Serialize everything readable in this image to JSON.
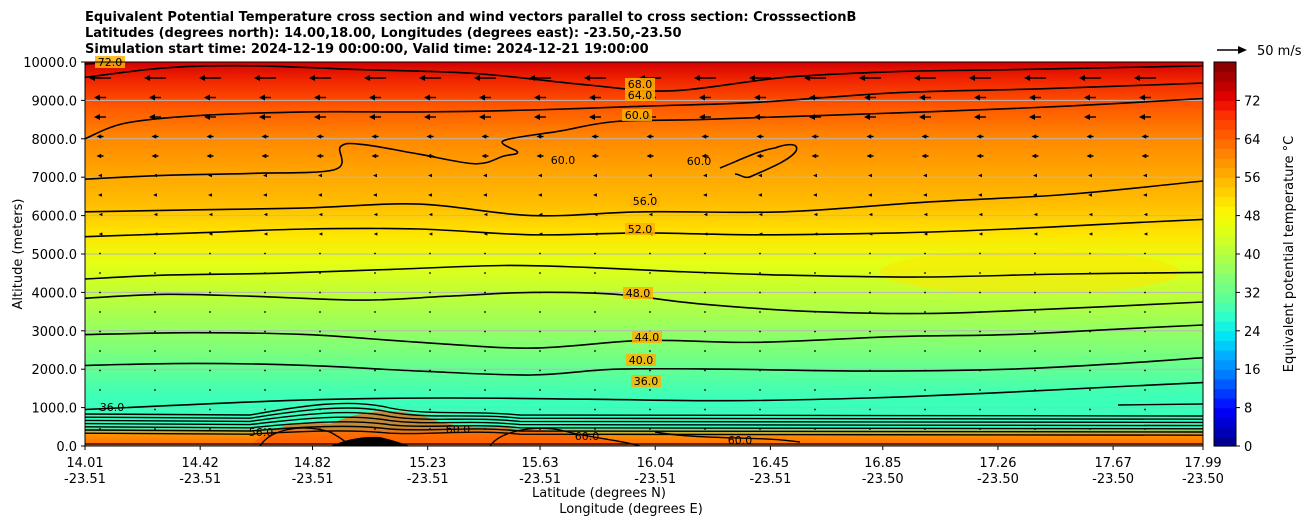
{
  "chart_data": {
    "type": "contour",
    "title_lines": [
      "Equivalent Potential Temperature cross section and wind vectors parallel to cross section: CrosssectionB",
      "Latitudes (degrees north): 14.00,18.00, Longitudes (degrees east): -23.50,-23.50",
      "Simulation start time: 2024-12-19 00:00:00, Valid time: 2024-12-21 19:00:00"
    ],
    "ylabel": "Altitude (meters)",
    "xlabel_lines": [
      "Latitude (degrees N)",
      "Longitude (degrees E)"
    ],
    "ylim": [
      0,
      10000
    ],
    "y_ticks": [
      "0.0",
      "1000.0",
      "2000.0",
      "3000.0",
      "4000.0",
      "5000.0",
      "6000.0",
      "7000.0",
      "8000.0",
      "9000.0",
      "10000.0"
    ],
    "x_ticks": [
      {
        "lat": "14.01",
        "lon": "-23.51"
      },
      {
        "lat": "14.42",
        "lon": "-23.51"
      },
      {
        "lat": "14.82",
        "lon": "-23.51"
      },
      {
        "lat": "15.23",
        "lon": "-23.51"
      },
      {
        "lat": "15.63",
        "lon": "-23.51"
      },
      {
        "lat": "16.04",
        "lon": "-23.51"
      },
      {
        "lat": "16.45",
        "lon": "-23.51"
      },
      {
        "lat": "16.85",
        "lon": "-23.50"
      },
      {
        "lat": "17.26",
        "lon": "-23.50"
      },
      {
        "lat": "17.67",
        "lon": "-23.50"
      },
      {
        "lat": "17.99",
        "lon": "-23.50"
      }
    ],
    "colorbar": {
      "label": "Equivalent potential temperature $^\\circ$C",
      "label_text": "Equivalent potential temperature °C",
      "range": [
        0,
        80
      ],
      "ticks": [
        "0",
        "8",
        "16",
        "24",
        "32",
        "40",
        "48",
        "56",
        "64",
        "72"
      ]
    },
    "quiver_key": "50 m/s",
    "contours": [
      {
        "level": 36,
        "label": "36.0",
        "points": [
          [
            14.01,
            950
          ],
          [
            14.3,
            1050
          ],
          [
            14.8,
            1200
          ],
          [
            15.3,
            1250
          ],
          [
            15.8,
            1220
          ],
          [
            16.3,
            1180
          ],
          [
            16.8,
            1250
          ],
          [
            17.3,
            1400
          ],
          [
            17.7,
            1550
          ],
          [
            17.99,
            1650
          ]
        ]
      },
      {
        "level": 40,
        "label": "40.0",
        "points": [
          [
            14.01,
            2100
          ],
          [
            14.4,
            2150
          ],
          [
            14.8,
            2100
          ],
          [
            15.2,
            1950
          ],
          [
            15.6,
            1850
          ],
          [
            15.9,
            2000
          ],
          [
            16.3,
            2000
          ],
          [
            16.8,
            1950
          ],
          [
            17.3,
            2000
          ],
          [
            17.7,
            2150
          ],
          [
            17.99,
            2300
          ]
        ]
      },
      {
        "level": 44,
        "label": "44.0",
        "points": [
          [
            14.01,
            2900
          ],
          [
            14.4,
            2950
          ],
          [
            14.8,
            2900
          ],
          [
            15.2,
            2700
          ],
          [
            15.6,
            2550
          ],
          [
            16.0,
            2750
          ],
          [
            16.4,
            2700
          ],
          [
            16.9,
            2850
          ],
          [
            17.3,
            2900
          ],
          [
            17.7,
            3050
          ],
          [
            17.99,
            3150
          ]
        ]
      },
      {
        "level": 48,
        "label": "48.0",
        "points": [
          [
            14.01,
            3850
          ],
          [
            14.3,
            3950
          ],
          [
            14.6,
            3900
          ],
          [
            15.0,
            3800
          ],
          [
            15.3,
            3900
          ],
          [
            15.6,
            4000
          ],
          [
            15.9,
            3950
          ],
          [
            16.2,
            3700
          ],
          [
            16.6,
            3500
          ],
          [
            17.0,
            3450
          ],
          [
            17.4,
            3550
          ],
          [
            17.99,
            3750
          ]
        ]
      },
      {
        "level": 48,
        "label": "",
        "points": [
          [
            14.01,
            4350
          ],
          [
            14.3,
            4450
          ],
          [
            14.7,
            4500
          ],
          [
            15.1,
            4600
          ],
          [
            15.5,
            4700
          ],
          [
            15.8,
            4650
          ],
          [
            16.1,
            4550
          ],
          [
            16.5,
            4450
          ],
          [
            17.0,
            4400
          ],
          [
            17.5,
            4480
          ],
          [
            17.99,
            4520
          ]
        ]
      },
      {
        "level": 52,
        "label": "52.0",
        "points": [
          [
            14.01,
            5450
          ],
          [
            14.4,
            5550
          ],
          [
            14.8,
            5650
          ],
          [
            15.2,
            5650
          ],
          [
            15.6,
            5500
          ],
          [
            16.0,
            5550
          ],
          [
            16.4,
            5500
          ],
          [
            16.9,
            5550
          ],
          [
            17.3,
            5650
          ],
          [
            17.7,
            5800
          ],
          [
            17.99,
            5900
          ]
        ]
      },
      {
        "level": 56,
        "label": "56.0",
        "points": [
          [
            14.01,
            6100
          ],
          [
            14.4,
            6150
          ],
          [
            14.8,
            6200
          ],
          [
            15.2,
            6300
          ],
          [
            15.6,
            6000
          ],
          [
            16.0,
            6100
          ],
          [
            16.5,
            6100
          ],
          [
            17.0,
            6350
          ],
          [
            17.5,
            6550
          ],
          [
            17.99,
            6900
          ]
        ]
      },
      {
        "level": 60,
        "label": "60.0",
        "points": [
          [
            14.01,
            6950
          ],
          [
            14.3,
            7050
          ],
          [
            14.6,
            7100
          ],
          [
            14.9,
            7200
          ],
          [
            14.92,
            7800
          ],
          [
            15.0,
            7850
          ],
          [
            15.2,
            7600
          ],
          [
            15.4,
            7350
          ],
          [
            15.5,
            7550
          ],
          [
            15.55,
            7650
          ],
          [
            15.5,
            7950
          ],
          [
            15.7,
            8200
          ],
          [
            15.9,
            8450
          ],
          [
            16.2,
            8500
          ],
          [
            16.6,
            8600
          ],
          [
            17.0,
            8700
          ],
          [
            17.5,
            8850
          ],
          [
            17.99,
            9050
          ]
        ]
      },
      {
        "level": 64,
        "label": "64.0",
        "points": [
          [
            14.01,
            8000
          ],
          [
            14.15,
            8400
          ],
          [
            14.4,
            8600
          ],
          [
            14.8,
            8700
          ],
          [
            15.2,
            8700
          ],
          [
            15.6,
            8750
          ],
          [
            16.0,
            8850
          ],
          [
            16.4,
            8950
          ],
          [
            16.9,
            9200
          ],
          [
            17.4,
            9300
          ],
          [
            17.99,
            9450
          ]
        ]
      },
      {
        "level": 68,
        "label": "68.0",
        "points": [
          [
            14.01,
            9600
          ],
          [
            14.3,
            9850
          ],
          [
            14.6,
            9900
          ],
          [
            15.0,
            9800
          ],
          [
            15.4,
            9700
          ],
          [
            15.8,
            9400
          ],
          [
            16.1,
            9250
          ],
          [
            16.5,
            9600
          ],
          [
            16.9,
            9750
          ],
          [
            17.3,
            9800
          ],
          [
            17.99,
            9900
          ]
        ]
      },
      {
        "level": 72,
        "label": "72.0",
        "points": [
          [
            14.01,
            9950
          ],
          [
            14.15,
            10000
          ]
        ]
      }
    ]
  }
}
